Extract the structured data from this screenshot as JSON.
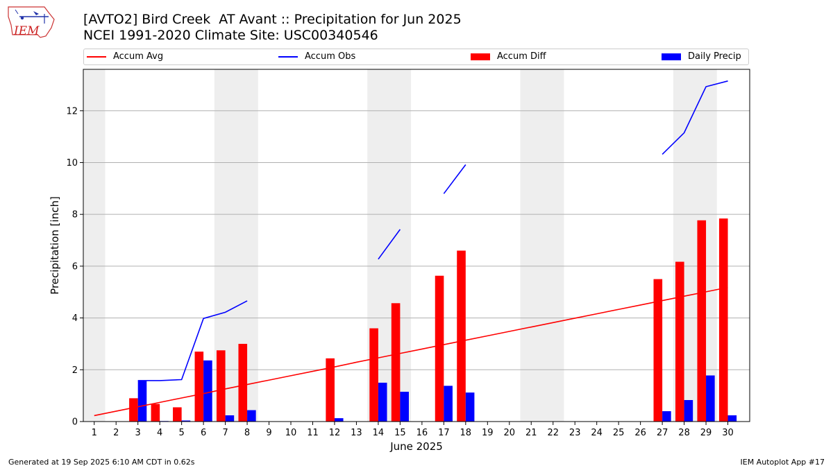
{
  "header": {
    "title_line1": "[AVTO2] Bird Creek  AT Avant :: Precipitation for Jun 2025",
    "title_line2": "NCEI 1991-2020 Climate Site: USC00340546",
    "logo_text": "IEM"
  },
  "legend": {
    "items": [
      {
        "label": "Accum Avg",
        "color": "#ff0000",
        "kind": "line"
      },
      {
        "label": "Accum Obs",
        "color": "#0000ff",
        "kind": "line"
      },
      {
        "label": "Accum Diff",
        "color": "#ff0000",
        "kind": "bar"
      },
      {
        "label": "Daily Precip",
        "color": "#0000ff",
        "kind": "bar"
      }
    ]
  },
  "footer": {
    "left": "Generated at 19 Sep 2025 6:10 AM CDT in 0.62s",
    "right": "IEM Autoplot App #17"
  },
  "colors": {
    "avg": "#ff0000",
    "obs": "#0000ff",
    "diff": "#ff0000",
    "daily": "#0000ff",
    "weekend": "#eeeeee",
    "grid": "#b0b0b0"
  },
  "chart_data": {
    "type": "bar",
    "title": "[AVTO2] Bird Creek  AT Avant :: Precipitation for Jun 2025",
    "xlabel": "June 2025",
    "ylabel": "Precipitation [inch]",
    "ylim": [
      0,
      13.6
    ],
    "yticks": [
      0,
      2,
      4,
      6,
      8,
      10,
      12
    ],
    "grid": "horizontal",
    "legend_position": "top",
    "days": [
      1,
      2,
      3,
      4,
      5,
      6,
      7,
      8,
      9,
      10,
      11,
      12,
      13,
      14,
      15,
      16,
      17,
      18,
      19,
      20,
      21,
      22,
      23,
      24,
      25,
      26,
      27,
      28,
      29,
      30
    ],
    "shaded_days": [
      1,
      7,
      8,
      14,
      15,
      21,
      22,
      28,
      29
    ],
    "series": [
      {
        "name": "Accum Avg",
        "kind": "line",
        "values": [
          0.23,
          0.4,
          0.57,
          0.74,
          0.91,
          1.08,
          1.26,
          1.43,
          1.6,
          1.77,
          1.94,
          2.11,
          2.29,
          2.46,
          2.63,
          2.8,
          2.97,
          3.14,
          3.31,
          3.48,
          3.65,
          3.82,
          3.99,
          4.16,
          4.33,
          4.5,
          4.67,
          4.84,
          5.01,
          5.18
        ]
      },
      {
        "name": "Accum Obs",
        "kind": "line",
        "values": [
          null,
          null,
          1.58,
          1.58,
          1.62,
          3.98,
          4.22,
          4.66,
          null,
          null,
          null,
          null,
          null,
          6.27,
          7.42,
          null,
          8.8,
          9.92,
          null,
          null,
          null,
          null,
          null,
          null,
          null,
          null,
          10.32,
          11.15,
          12.93,
          13.15
        ]
      },
      {
        "name": "Accum Diff",
        "kind": "bar",
        "values": [
          0,
          0,
          0.9,
          0.68,
          0.55,
          2.7,
          2.75,
          3.0,
          0,
          0,
          0,
          2.44,
          0,
          3.6,
          4.57,
          0,
          5.63,
          6.6,
          0,
          0,
          0,
          0,
          0,
          0,
          0,
          0,
          5.5,
          6.17,
          7.77,
          7.84
        ]
      },
      {
        "name": "Daily Precip",
        "kind": "bar",
        "values": [
          0,
          0,
          1.58,
          0.02,
          0.04,
          2.36,
          0.24,
          0.44,
          0,
          0,
          0,
          0.13,
          0,
          1.5,
          1.15,
          0,
          1.38,
          1.12,
          0,
          0,
          0,
          0,
          0,
          0,
          0,
          0,
          0.4,
          0.83,
          1.78,
          0.24
        ]
      }
    ]
  }
}
